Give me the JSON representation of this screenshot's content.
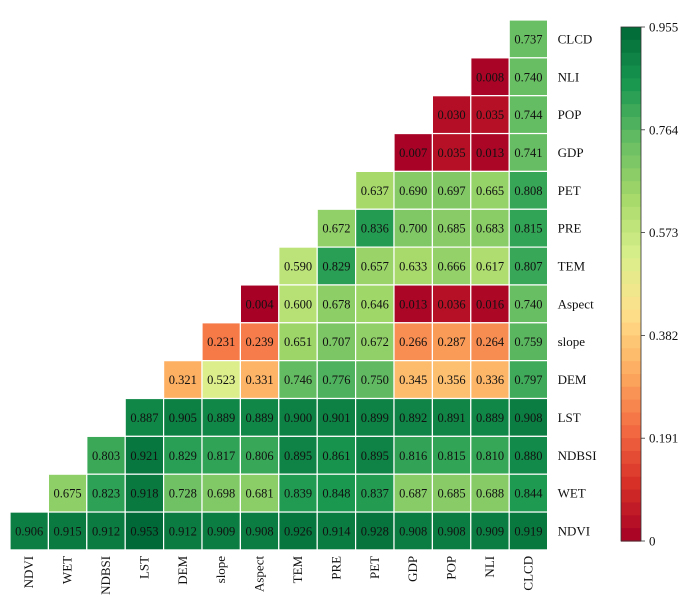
{
  "chart_data": {
    "type": "heatmap",
    "variables": [
      "NDVI",
      "WET",
      "NDBSI",
      "LST",
      "DEM",
      "slope",
      "Aspect",
      "TEM",
      "PRE",
      "PET",
      "GDP",
      "POP",
      "NLI",
      "CLCD"
    ],
    "rows": [
      {
        "name": "CLCD",
        "values": [
          0.737
        ]
      },
      {
        "name": "NLI",
        "values": [
          0.008,
          0.74
        ]
      },
      {
        "name": "POP",
        "values": [
          0.03,
          0.035,
          0.744
        ]
      },
      {
        "name": "GDP",
        "values": [
          0.007,
          0.035,
          0.013,
          0.741
        ]
      },
      {
        "name": "PET",
        "values": [
          0.637,
          0.69,
          0.697,
          0.665,
          0.808
        ]
      },
      {
        "name": "PRE",
        "values": [
          0.672,
          0.836,
          0.7,
          0.685,
          0.683,
          0.815
        ]
      },
      {
        "name": "TEM",
        "values": [
          0.59,
          0.829,
          0.657,
          0.633,
          0.666,
          0.617,
          0.807
        ]
      },
      {
        "name": "Aspect",
        "values": [
          0.004,
          0.6,
          0.678,
          0.646,
          0.013,
          0.036,
          0.016,
          0.74
        ]
      },
      {
        "name": "slope",
        "values": [
          0.231,
          0.239,
          0.651,
          0.707,
          0.672,
          0.266,
          0.287,
          0.264,
          0.759
        ]
      },
      {
        "name": "DEM",
        "values": [
          0.321,
          0.523,
          0.331,
          0.746,
          0.776,
          0.75,
          0.345,
          0.356,
          0.336,
          0.797
        ]
      },
      {
        "name": "LST",
        "values": [
          0.887,
          0.905,
          0.889,
          0.889,
          0.9,
          0.901,
          0.899,
          0.892,
          0.891,
          0.889,
          0.908
        ]
      },
      {
        "name": "NDBSI",
        "values": [
          0.803,
          0.921,
          0.829,
          0.817,
          0.806,
          0.895,
          0.861,
          0.895,
          0.816,
          0.815,
          0.81,
          0.88
        ]
      },
      {
        "name": "WET",
        "values": [
          0.675,
          0.823,
          0.918,
          0.728,
          0.698,
          0.681,
          0.839,
          0.848,
          0.837,
          0.687,
          0.685,
          0.688,
          0.844
        ]
      },
      {
        "name": "NDVI",
        "values": [
          0.906,
          0.915,
          0.912,
          0.953,
          0.912,
          0.909,
          0.908,
          0.926,
          0.914,
          0.928,
          0.908,
          0.908,
          0.909,
          0.919
        ]
      }
    ],
    "colorbar": {
      "min": 0,
      "max": 0.955,
      "ticks": [
        "0",
        "0.191",
        "0.382",
        "0.573",
        "0.764",
        "0.955"
      ],
      "colors": [
        "#a50026",
        "#d73027",
        "#f46d43",
        "#fdae61",
        "#fee08b",
        "#d9ef8b",
        "#a6d96a",
        "#66bd63",
        "#1a9850",
        "#006837"
      ]
    }
  }
}
